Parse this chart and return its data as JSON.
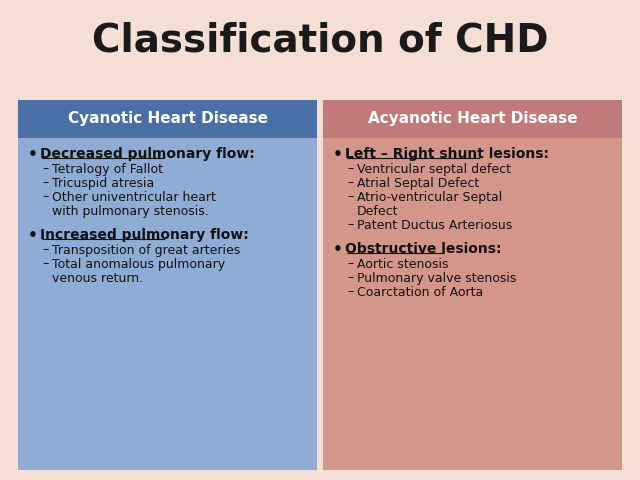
{
  "title": "Classification of CHD",
  "title_fontsize": 28,
  "title_fontweight": "bold",
  "bg_color": "#f5dfd5",
  "left_header": "Cyanotic Heart Disease",
  "right_header": "Acyanotic Heart Disease",
  "left_header_bg": "#4a6fa5",
  "right_header_bg": "#c07a7a",
  "left_body_bg": "#8fadd4",
  "right_body_bg": "#d4968a",
  "header_text_color": "#ffffff",
  "body_text_color": "#111111",
  "left_bullets": [
    {
      "main": "Decreased pulmonary flow:",
      "underline": true,
      "subs": [
        "Tetralogy of Fallot",
        "Tricuspid atresia",
        "Other univentricular heart\nwith pulmonary stenosis."
      ]
    },
    {
      "main": "Increased pulmonary flow:",
      "underline": true,
      "subs": [
        "Transposition of great arteries",
        "Total anomalous pulmonary\nvenous return."
      ]
    }
  ],
  "right_bullets": [
    {
      "main": "Left – Right shunt lesions:",
      "underline": true,
      "subs": [
        "Ventricular septal defect",
        "Atrial Septal Defect",
        "Atrio-ventricular Septal\nDefect",
        "Patent Ductus Arteriosus"
      ]
    },
    {
      "main": "Obstructive lesions:",
      "underline": true,
      "subs": [
        "Aortic stenosis",
        "Pulmonary valve stenosis",
        "Coarctation of Aorta"
      ]
    }
  ]
}
